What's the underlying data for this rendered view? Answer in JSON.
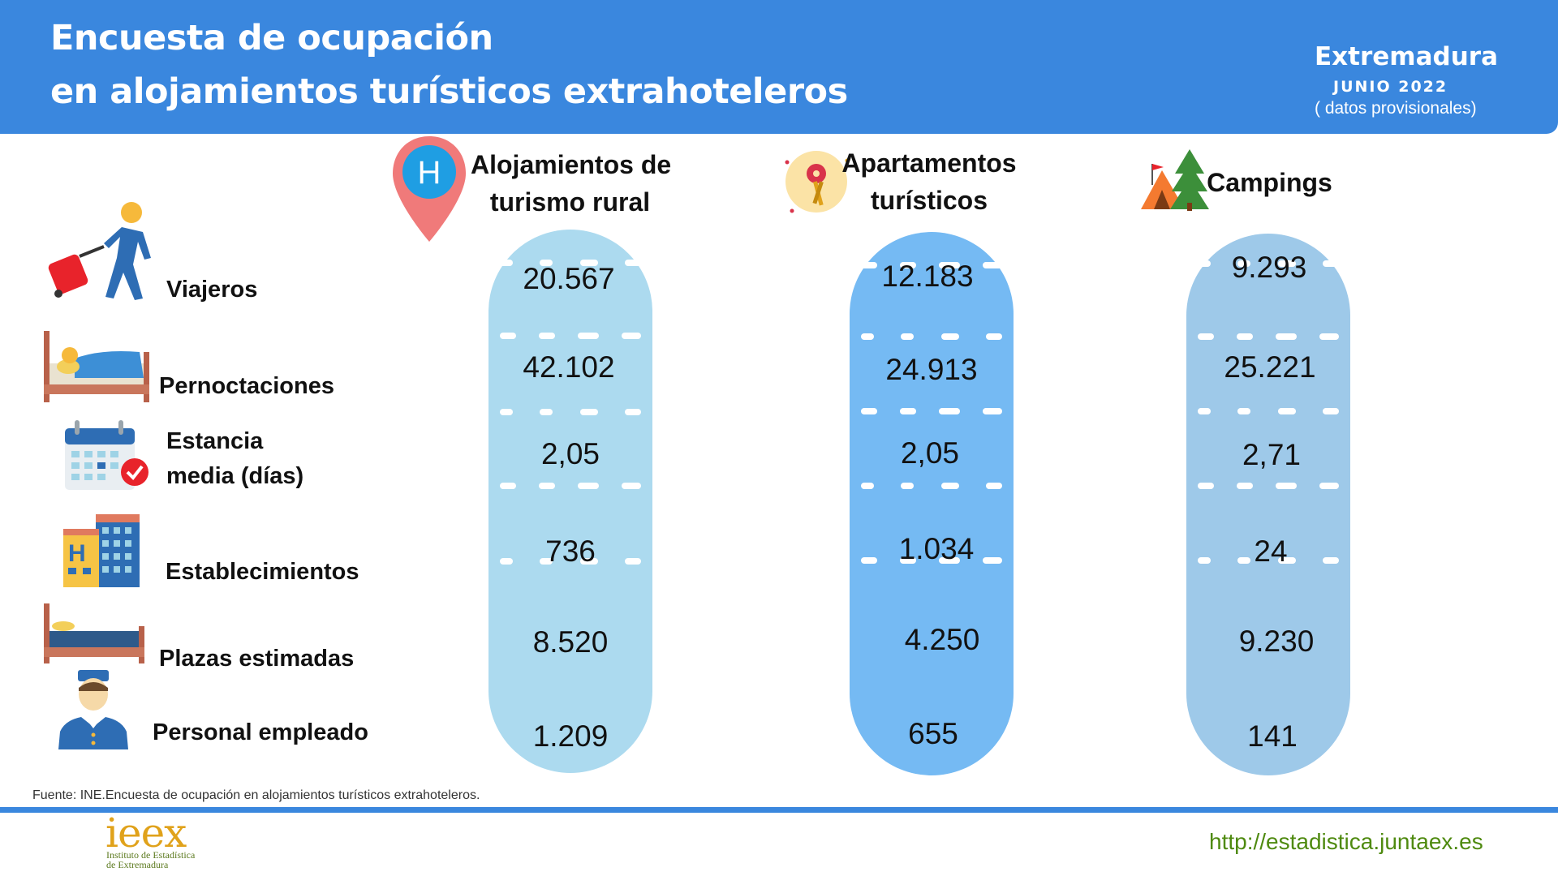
{
  "header": {
    "title_line1": "Encuesta de ocupación",
    "title_line2": "en alojamientos turísticos extrahoteleros",
    "region": "Extremadura",
    "period": "JUNIO 2022",
    "note": "( datos provisionales)"
  },
  "colors": {
    "header_bg": "#3a87de",
    "pill_rural": "#acdaef",
    "pill_apartments": "#75baf3",
    "pill_campings": "#9ec9e9",
    "url": "#4f8a10"
  },
  "metrics": [
    {
      "label": "Viajeros",
      "icon": "traveler-icon"
    },
    {
      "label_line1": "Pernoctaciones",
      "icon": "bed-sleeping-icon"
    },
    {
      "label_line1": "Estancia",
      "label_line2": "media (días)",
      "icon": "calendar-check-icon"
    },
    {
      "label": "Establecimientos",
      "icon": "hotel-building-icon"
    },
    {
      "label": "Plazas estimadas",
      "icon": "bed-icon"
    },
    {
      "label": "Personal empleado",
      "icon": "staff-person-icon"
    }
  ],
  "columns": [
    {
      "title_line1": "Alojamientos de",
      "title_line2": "turismo rural",
      "icon": "hotel-location-pin-icon",
      "values": [
        "20.567",
        "42.102",
        "2,05",
        "736",
        "8.520",
        "1.209"
      ]
    },
    {
      "title_line1": "Apartamentos",
      "title_line2": "turísticos",
      "icon": "keys-icon",
      "values": [
        "12.183",
        "24.913",
        "2,05",
        "1.034",
        "4.250",
        "655"
      ]
    },
    {
      "title_line1": "Campings",
      "icon": "tent-tree-icon",
      "values": [
        "9.293",
        "25.221",
        "2,71",
        "24",
        "9.230",
        "141"
      ]
    }
  ],
  "footer": {
    "source": "Fuente: INE.Encuesta de ocupación en alojamientos turísticos extrahoteleros.",
    "logo": "ieex",
    "logo_sub1": "Instituto de Estadística",
    "logo_sub2": "de Extremadura",
    "url": "http://estadistica.juntaex.es"
  }
}
